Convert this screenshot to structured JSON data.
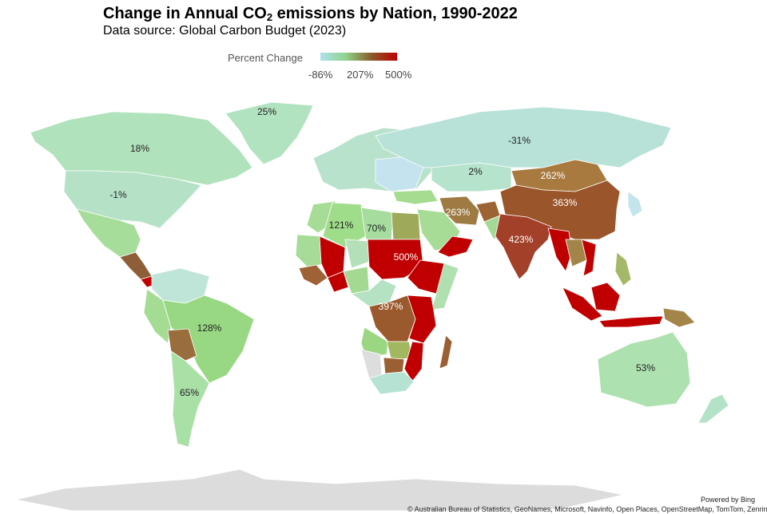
{
  "title": {
    "prefix": "Change in Annual CO",
    "subscript": "2",
    "suffix": " emissions by Nation, 1990-2022"
  },
  "subtitle": "Data source: Global Carbon Budget (2023)",
  "legend": {
    "title": "Percent Change",
    "min_label": "-86%",
    "mid_label": "207%",
    "max_label": "500%",
    "colors": [
      "#aee0ee",
      "#8fd38a",
      "#8a5a2a",
      "#c00000"
    ]
  },
  "regions": [
    {
      "id": "greenland",
      "label": "25%",
      "fill": "#b2e3c0"
    },
    {
      "id": "canada",
      "label": "18%",
      "fill": "#b0e2bb"
    },
    {
      "id": "usa",
      "label": "-1%",
      "fill": "#b5e2c7"
    },
    {
      "id": "russia",
      "label": "-31%",
      "fill": "#b8e2d8"
    },
    {
      "id": "kazakhstan",
      "label": "2%",
      "fill": "#b6e3cb"
    },
    {
      "id": "mongolia",
      "label": "262%",
      "fill": "#a97a3f"
    },
    {
      "id": "china",
      "label": "363%",
      "fill": "#9b552b"
    },
    {
      "id": "iran",
      "label": "263%",
      "fill": "#9e7b42"
    },
    {
      "id": "india",
      "label": "423%",
      "fill": "#a3402a"
    },
    {
      "id": "algeria",
      "label": "121%",
      "fill": "#a0dd8a"
    },
    {
      "id": "libya",
      "label": "70%",
      "fill": "#a6dd9e"
    },
    {
      "id": "chad",
      "label": "500%",
      "fill": "#c00000"
    },
    {
      "id": "drc",
      "label": "397%",
      "fill": "#9a5a2e"
    },
    {
      "id": "brazil",
      "label": "128%",
      "fill": "#98d883"
    },
    {
      "id": "argentina",
      "label": "65%",
      "fill": "#a9e0a6"
    },
    {
      "id": "australia",
      "label": "53%",
      "fill": "#aee1b0"
    }
  ],
  "credits": {
    "powered": "Powered by Bing",
    "sources": "© Australian Bureau of Statistics, GeoNames, Microsoft, Navinfo, Open Places, OpenStreetMap, TomTom, Zenrin"
  }
}
